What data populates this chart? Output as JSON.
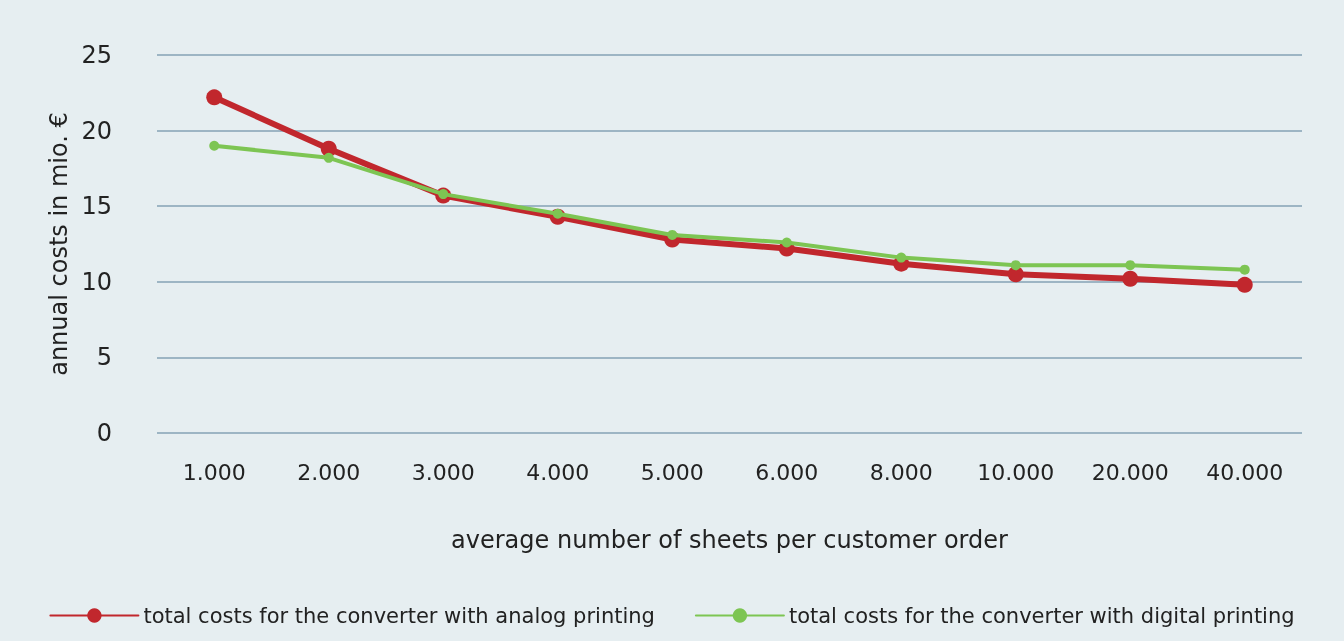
{
  "chart_data": {
    "type": "line",
    "xlabel": "average number of sheets per customer order",
    "ylabel": "annual costs in mio. €",
    "categories": [
      "1.000",
      "2.000",
      "3.000",
      "4.000",
      "5.000",
      "6.000",
      "8.000",
      "10.000",
      "20.000",
      "40.000"
    ],
    "series": [
      {
        "name": "total costs for the converter with analog printing",
        "color": "#c1272d",
        "values": [
          22.2,
          18.8,
          15.7,
          14.3,
          12.8,
          12.2,
          11.2,
          10.5,
          10.2,
          9.8
        ]
      },
      {
        "name": "total costs for the converter with digital printing",
        "color": "#7dc553",
        "values": [
          19.0,
          18.2,
          15.8,
          14.5,
          13.1,
          12.6,
          11.6,
          11.1,
          11.1,
          10.8
        ]
      }
    ],
    "ylim": [
      0,
      25
    ],
    "yticks": [
      0,
      5,
      10,
      15,
      20,
      25
    ],
    "grid": "y",
    "legend": "bottom",
    "marker": "circle",
    "line_style": "solid"
  }
}
